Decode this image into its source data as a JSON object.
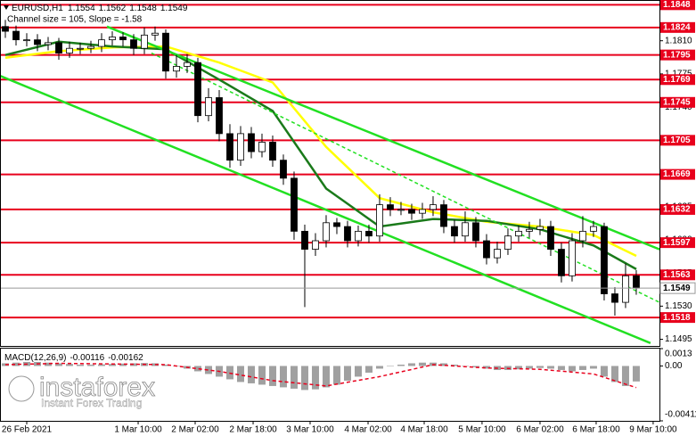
{
  "chart_data": [
    {
      "type": "candlestick",
      "title": "EURUSD,H1",
      "current_ohlc": [
        1.1554,
        1.1562,
        1.1548,
        1.1549
      ],
      "subtitle": "Channel size = 105, Slope = -1.58",
      "open": [
        1.1825,
        1.182,
        1.1811,
        1.1811,
        1.1806,
        1.1808,
        1.1797,
        1.1802,
        1.1802,
        1.1804,
        1.1811,
        1.1814,
        1.1811,
        1.1802,
        1.1816,
        1.1818,
        1.1778,
        1.1783,
        1.1787,
        1.1731,
        1.175,
        1.1712,
        1.1684,
        1.1712,
        1.1693,
        1.1703,
        1.1684,
        1.1665,
        1.1609,
        1.159,
        1.1599,
        1.1618,
        1.1614,
        1.1599,
        1.1609,
        1.1604,
        1.1637,
        1.1632,
        1.1632,
        1.1628,
        1.1632,
        1.1637,
        1.1614,
        1.1604,
        1.1618,
        1.1599,
        1.1581,
        1.159,
        1.1604,
        1.1609,
        1.1611,
        1.1614,
        1.159,
        1.1562,
        1.1599,
        1.1609,
        1.1614,
        1.1543,
        1.1534,
        1.1562
      ],
      "high": [
        1.1832,
        1.1826,
        1.1818,
        1.1817,
        1.1814,
        1.1813,
        1.1809,
        1.1808,
        1.181,
        1.1818,
        1.182,
        1.1819,
        1.1817,
        1.1824,
        1.1825,
        1.1822,
        1.1795,
        1.1796,
        1.1792,
        1.176,
        1.1758,
        1.1722,
        1.172,
        1.1719,
        1.1712,
        1.171,
        1.169,
        1.1672,
        1.1616,
        1.1607,
        1.1626,
        1.1623,
        1.162,
        1.1615,
        1.1616,
        1.1648,
        1.1645,
        1.164,
        1.1638,
        1.1639,
        1.1646,
        1.1642,
        1.1621,
        1.163,
        1.1624,
        1.1606,
        1.1598,
        1.1612,
        1.1615,
        1.1619,
        1.1622,
        1.162,
        1.1597,
        1.1607,
        1.1625,
        1.162,
        1.1618,
        1.155,
        1.1575,
        1.1568
      ],
      "low": [
        1.1813,
        1.1805,
        1.1804,
        1.1799,
        1.18,
        1.179,
        1.1792,
        1.1796,
        1.1797,
        1.1798,
        1.1805,
        1.1804,
        1.1795,
        1.1796,
        1.181,
        1.177,
        1.1771,
        1.1776,
        1.1724,
        1.1725,
        1.1704,
        1.1676,
        1.1678,
        1.1686,
        1.1687,
        1.1677,
        1.1658,
        1.16,
        1.1529,
        1.1583,
        1.1592,
        1.1606,
        1.1592,
        1.1593,
        1.1597,
        1.1598,
        1.1625,
        1.1626,
        1.1621,
        1.1622,
        1.1625,
        1.1607,
        1.1597,
        1.1598,
        1.1592,
        1.1574,
        1.1575,
        1.1584,
        1.1598,
        1.1602,
        1.1605,
        1.1583,
        1.1555,
        1.1556,
        1.1592,
        1.1603,
        1.1536,
        1.152,
        1.1528,
        1.1542
      ],
      "close": [
        1.182,
        1.1811,
        1.1811,
        1.1806,
        1.1808,
        1.1797,
        1.1802,
        1.1802,
        1.1804,
        1.1811,
        1.1814,
        1.1811,
        1.1802,
        1.1816,
        1.1818,
        1.1778,
        1.1783,
        1.1787,
        1.1731,
        1.175,
        1.1712,
        1.1684,
        1.1712,
        1.1693,
        1.1703,
        1.1684,
        1.1665,
        1.1609,
        1.159,
        1.1599,
        1.1618,
        1.1614,
        1.1599,
        1.1609,
        1.1604,
        1.1637,
        1.1632,
        1.1632,
        1.1628,
        1.1632,
        1.1637,
        1.1614,
        1.1604,
        1.1618,
        1.1599,
        1.1581,
        1.159,
        1.1604,
        1.1609,
        1.1611,
        1.1614,
        1.159,
        1.1562,
        1.1599,
        1.1609,
        1.1614,
        1.1543,
        1.1534,
        1.1562,
        1.1549
      ],
      "up_color": "#ffffff",
      "down_color": "#000000",
      "series": [
        {
          "color": "#ffff00",
          "x": [
            0,
            5,
            10,
            15,
            20,
            25,
            30,
            35,
            40,
            45,
            50,
            55,
            59
          ],
          "values": [
            1.1792,
            1.1799,
            1.1803,
            1.1804,
            1.1787,
            1.1766,
            1.1698,
            1.1644,
            1.1629,
            1.1619,
            1.1614,
            1.1605,
            1.1583
          ]
        },
        {
          "color": "#1a7a1a",
          "x": [
            0,
            5,
            10,
            15,
            20,
            25,
            30,
            35,
            40,
            45,
            50,
            55,
            59
          ],
          "values": [
            1.1795,
            1.1809,
            1.1804,
            1.1801,
            1.1769,
            1.1736,
            1.1654,
            1.1614,
            1.1622,
            1.162,
            1.1611,
            1.1594,
            1.1569
          ]
        },
        {
          "color": "#22e022",
          "x": [
            9.5,
            61.17
          ],
          "values": [
            1.1825,
            1.159
          ]
        },
        {
          "color": "#22e022",
          "x": [
            -0.5,
            60.33
          ],
          "values": [
            1.1773,
            1.1491
          ]
        },
        {
          "color": "#22e022",
          "dash": true,
          "x": [
            13.67,
            61.17
          ],
          "values": [
            1.1797,
            1.1534
          ]
        }
      ],
      "levels": [
        1.1848,
        1.1824,
        1.1795,
        1.1769,
        1.1745,
        1.1705,
        1.1669,
        1.1632,
        1.1597,
        1.1563,
        1.1518
      ],
      "level_color": "#e8001c",
      "last_price": 1.1549,
      "xlim": [
        -0.5,
        61.17
      ],
      "ylim": [
        1.1488,
        1.1853
      ],
      "yticks": [
        {
          "value": 1.181,
          "label": "1.1810"
        },
        1.1775,
        {
          "value": 1.174,
          "label": "1.1740"
        },
        1.1705,
        {
          "value": 1.167,
          "label": "1.1670"
        },
        1.1635,
        {
          "value": 1.16,
          "label": "1.1600"
        },
        1.1565,
        {
          "value": 1.153,
          "label": "1.1530"
        },
        1.1495
      ],
      "xticks": [
        {
          "value": 2,
          "label": "26 Feb 2021"
        },
        {
          "value": 12.42,
          "label": "1 Mar 10:00"
        },
        {
          "value": 17.75,
          "label": "2 Mar 02:00"
        },
        {
          "value": 23.17,
          "label": "2 Mar 18:00"
        },
        {
          "value": 28.5,
          "label": "3 Mar 10:00"
        },
        {
          "value": 33.92,
          "label": "4 Mar 02:00"
        },
        {
          "value": 39.17,
          "label": "4 Mar 18:00"
        },
        {
          "value": 44.58,
          "label": "5 Mar 10:00"
        },
        {
          "value": 50,
          "label": "6 Mar 02:00"
        },
        {
          "value": 55.25,
          "label": "6 Mar 18:00"
        },
        {
          "value": 60.58,
          "label": "9 Mar 10:00"
        }
      ]
    },
    {
      "type": "macd",
      "title": "MACD(12,26,9)",
      "current_values": [
        -0.00116,
        -0.00162
      ],
      "histogram": [
        0.0002,
        0.00025,
        0.0003,
        0.0003,
        0.00025,
        0.0002,
        0.00015,
        0.0001,
        0.0001,
        0.00012,
        0.00015,
        0.00018,
        0.0002,
        0.00022,
        0.0002,
        0.0001,
        0,
        -0.0002,
        -0.0004,
        -0.0006,
        -0.0008,
        -0.001,
        -0.0012,
        -0.0013,
        -0.0014,
        -0.0015,
        -0.0016,
        -0.0017,
        -0.0018,
        -0.00175,
        -0.0016,
        -0.0014,
        -0.0011,
        -0.0008,
        -0.0005,
        -0.0002,
        0,
        0.0001,
        0.0002,
        0.00025,
        0.00025,
        0.0002,
        0.0001,
        0,
        -0.0001,
        -0.0002,
        -0.0003,
        -0.0003,
        -0.00025,
        -0.0002,
        -0.00015,
        -0.0002,
        -0.0003,
        -0.0004,
        -0.0003,
        -0.0002,
        -0.0008,
        -0.0012,
        -0.0015,
        -0.00116
      ],
      "histogram_color": "#a0a0a0",
      "signal": {
        "color": "#e8001c",
        "x": [
          0,
          5,
          10,
          15,
          20,
          25,
          30,
          35,
          40,
          45,
          50,
          55,
          59
        ],
        "values": [
          0.0001,
          0.0002,
          0.00015,
          0.0001,
          -0.0004,
          -0.0011,
          -0.0015,
          -0.0008,
          0.0001,
          -0.00015,
          -0.00025,
          -0.0006,
          -0.00162
        ]
      },
      "xlim": [
        -0.5,
        61.17
      ],
      "ylim": [
        -0.00411,
        0.0013
      ],
      "yticks": [
        0.0013,
        {
          "value": 0,
          "label": "0.00"
        },
        -0.00411
      ]
    }
  ],
  "watermark": {
    "brand": "instaforex",
    "tagline": "Instant Forex Trading"
  }
}
